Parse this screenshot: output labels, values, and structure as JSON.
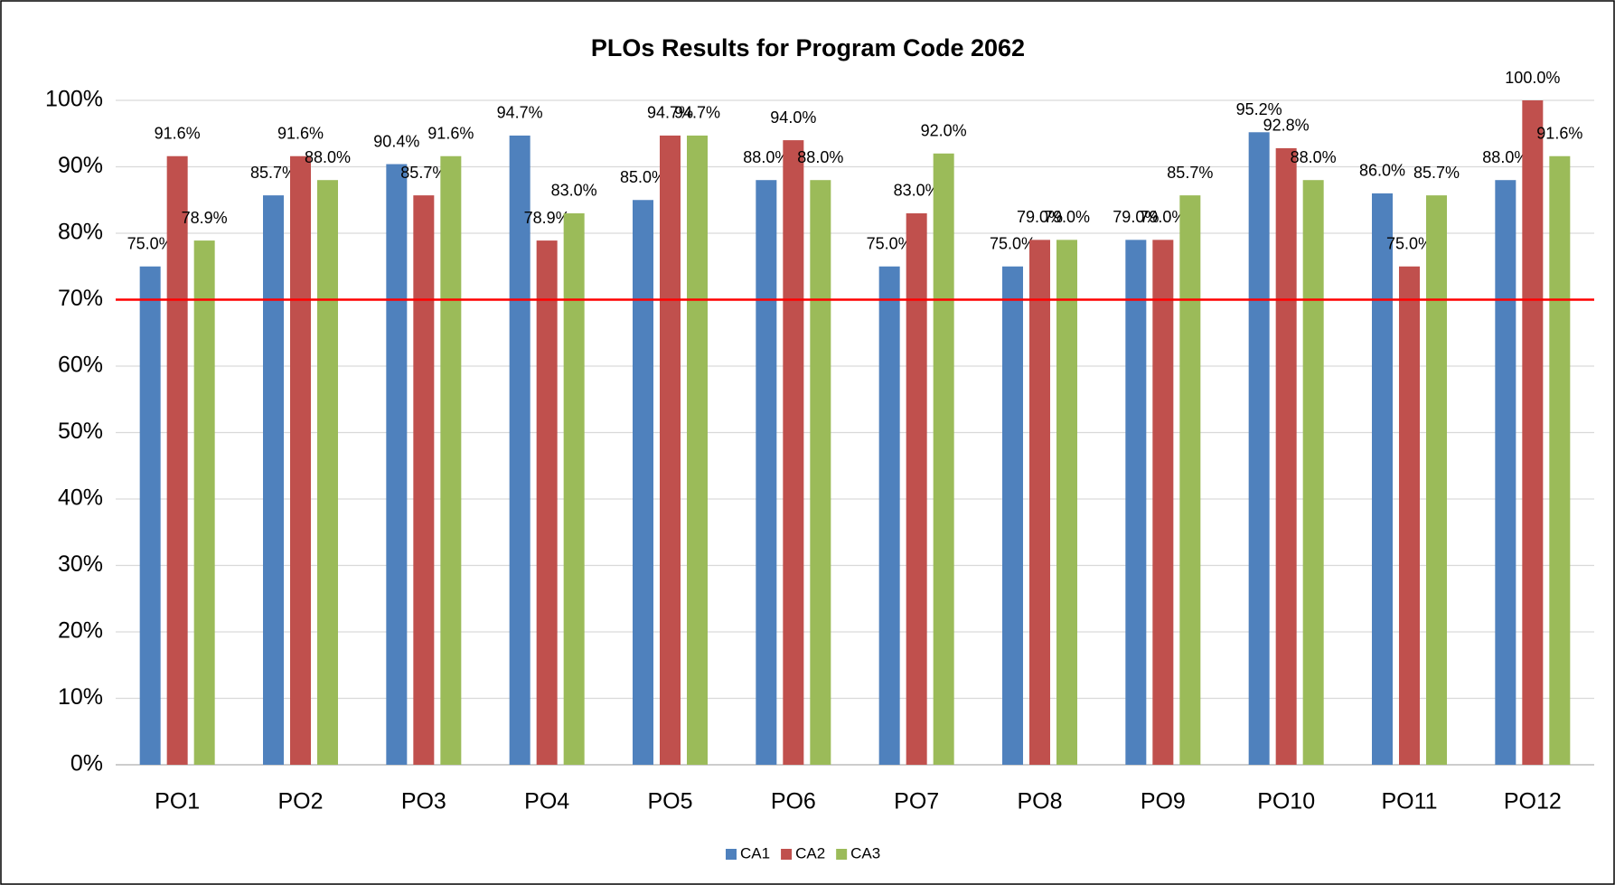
{
  "chart_data": {
    "type": "bar",
    "title": "PLOs Results for Program Code 2062",
    "categories": [
      "PO1",
      "PO2",
      "PO3",
      "PO4",
      "PO5",
      "PO6",
      "PO7",
      "PO8",
      "PO9",
      "PO10",
      "PO11",
      "PO12"
    ],
    "series": [
      {
        "name": "CA1",
        "color": "#4f81bd",
        "values": [
          75.0,
          85.7,
          90.4,
          94.7,
          85.0,
          88.0,
          75.0,
          75.0,
          79.0,
          95.2,
          86.0,
          88.0
        ],
        "value_labels": [
          "75.0%",
          "85.7%",
          "90.4%",
          "94.7%",
          "85.0%",
          "88.0%",
          "75.0%",
          "75.0%",
          "79.0%",
          "95.2%",
          "86.0%",
          "88.0%"
        ]
      },
      {
        "name": "CA2",
        "color": "#c0504d",
        "values": [
          91.6,
          91.6,
          85.7,
          78.9,
          94.7,
          94.0,
          83.0,
          79.0,
          79.0,
          92.8,
          75.0,
          100.0
        ],
        "value_labels": [
          "91.6%",
          "91.6%",
          "85.7%",
          "78.9%",
          "94.7%",
          "94.0%",
          "83.0%",
          "79.0%",
          "79.0%",
          "92.8%",
          "75.0%",
          "100.0%"
        ]
      },
      {
        "name": "CA3",
        "color": "#9bbb59",
        "values": [
          78.9,
          88.0,
          91.6,
          83.0,
          94.7,
          88.0,
          92.0,
          79.0,
          85.7,
          88.0,
          85.7,
          91.6
        ],
        "value_labels": [
          "78.9%",
          "88.0%",
          "91.6%",
          "83.0%",
          "94.7%",
          "88.0%",
          "92.0%",
          "79.0%",
          "85.7%",
          "88.0%",
          "85.7%",
          "91.6%"
        ]
      }
    ],
    "threshold": 70,
    "threshold_color": "#ff0000",
    "ylim": [
      0,
      100
    ],
    "yticks": [
      {
        "value": 0,
        "label": "0%"
      },
      {
        "value": 10,
        "label": "10%"
      },
      {
        "value": 20,
        "label": "20%"
      },
      {
        "value": 30,
        "label": "30%"
      },
      {
        "value": 40,
        "label": "40%"
      },
      {
        "value": 50,
        "label": "50%"
      },
      {
        "value": 60,
        "label": "60%"
      },
      {
        "value": 70,
        "label": "70%"
      },
      {
        "value": 80,
        "label": "80%"
      },
      {
        "value": 90,
        "label": "90%"
      },
      {
        "value": 100,
        "label": "100%"
      }
    ],
    "grid": true,
    "legend": "bottom"
  }
}
